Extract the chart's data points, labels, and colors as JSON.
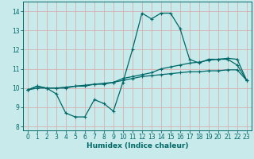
{
  "title": "",
  "xlabel": "Humidex (Indice chaleur)",
  "bg_color": "#c8eaea",
  "grid_color": "#d8b0b0",
  "line_color": "#006868",
  "spine_color": "#006868",
  "xlim": [
    -0.5,
    23.5
  ],
  "ylim": [
    7.8,
    14.5
  ],
  "xticks": [
    0,
    1,
    2,
    3,
    4,
    5,
    6,
    7,
    8,
    9,
    10,
    11,
    12,
    13,
    14,
    15,
    16,
    17,
    18,
    19,
    20,
    21,
    22,
    23
  ],
  "yticks": [
    8,
    9,
    10,
    11,
    12,
    13,
    14
  ],
  "line1_x": [
    0,
    1,
    2,
    3,
    4,
    5,
    6,
    7,
    8,
    9,
    10,
    11,
    12,
    13,
    14,
    15,
    16,
    17,
    18,
    19,
    20,
    21,
    22,
    23
  ],
  "line1_y": [
    9.9,
    10.1,
    10.0,
    9.7,
    8.7,
    8.5,
    8.5,
    9.4,
    9.2,
    8.8,
    10.3,
    12.0,
    13.9,
    13.6,
    13.9,
    13.9,
    13.1,
    11.5,
    11.3,
    11.5,
    11.5,
    11.5,
    11.2,
    10.4
  ],
  "line2_x": [
    0,
    1,
    2,
    3,
    4,
    5,
    6,
    7,
    8,
    9,
    10,
    11,
    12,
    13,
    14,
    15,
    16,
    17,
    18,
    19,
    20,
    21,
    22,
    23
  ],
  "line2_y": [
    9.9,
    10.1,
    10.0,
    10.0,
    10.0,
    10.1,
    10.1,
    10.2,
    10.2,
    10.3,
    10.5,
    10.6,
    10.7,
    10.8,
    11.0,
    11.1,
    11.2,
    11.3,
    11.35,
    11.45,
    11.5,
    11.55,
    11.5,
    10.4
  ],
  "line3_x": [
    0,
    1,
    2,
    3,
    4,
    5,
    6,
    7,
    8,
    9,
    10,
    11,
    12,
    13,
    14,
    15,
    16,
    17,
    18,
    19,
    20,
    21,
    22,
    23
  ],
  "line3_y": [
    9.9,
    10.0,
    10.0,
    10.0,
    10.05,
    10.1,
    10.15,
    10.2,
    10.25,
    10.3,
    10.4,
    10.5,
    10.6,
    10.65,
    10.7,
    10.75,
    10.8,
    10.85,
    10.85,
    10.9,
    10.9,
    10.95,
    10.95,
    10.4
  ],
  "marker": "+",
  "markersize": 3,
  "linewidth": 0.9
}
